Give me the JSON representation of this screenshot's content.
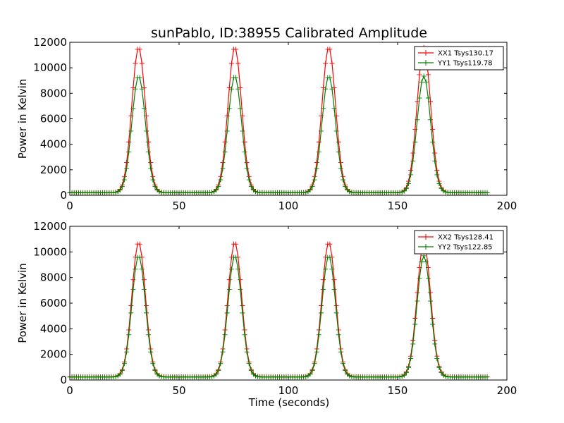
{
  "figure": {
    "title": "sunPablo, ID:38955 Calibrated Amplitude",
    "xlabel": "Time (seconds)"
  },
  "chart_data": [
    {
      "type": "line",
      "title": "sunPablo, ID:38955 Calibrated Amplitude",
      "xlabel": "",
      "ylabel": "Power in Kelvin",
      "xlim": [
        0,
        200
      ],
      "ylim": [
        0,
        12000
      ],
      "xticks": [
        "0",
        "50",
        "100",
        "150",
        "200"
      ],
      "yticks": [
        "0",
        "2000",
        "4000",
        "6000",
        "8000",
        "10000",
        "12000"
      ],
      "legend_position": "top-right",
      "grid": false,
      "marker": "+",
      "x_sampling": {
        "start": 0,
        "end": 191,
        "step": 1
      },
      "peaks_x": [
        31.5,
        75.5,
        118.5,
        162
      ],
      "peak_width_sigma": 3.1,
      "series": [
        {
          "name": "XX1 Tsys130.17",
          "color": "#ff0000",
          "baseline": 210,
          "peak": 11600
        },
        {
          "name": "YY1 Tsys119.78",
          "color": "#008000",
          "baseline": 200,
          "peak": 9350
        }
      ]
    },
    {
      "type": "line",
      "title": "",
      "xlabel": "Time (seconds)",
      "ylabel": "Power in Kelvin",
      "xlim": [
        0,
        200
      ],
      "ylim": [
        0,
        12000
      ],
      "xticks": [
        "0",
        "50",
        "100",
        "150",
        "200"
      ],
      "yticks": [
        "0",
        "2000",
        "4000",
        "6000",
        "8000",
        "10000",
        "12000"
      ],
      "legend_position": "top-right",
      "grid": false,
      "marker": "+",
      "x_sampling": {
        "start": 0,
        "end": 191,
        "step": 1
      },
      "peaks_x": [
        31.5,
        75.5,
        118.5,
        162
      ],
      "peak_width_sigma": 3.1,
      "series": [
        {
          "name": "XX2 Tsys128.41",
          "color": "#ff0000",
          "baseline": 250,
          "peak": 10750
        },
        {
          "name": "YY2 Tsys122.85",
          "color": "#008000",
          "baseline": 230,
          "peak": 9700
        }
      ]
    }
  ]
}
